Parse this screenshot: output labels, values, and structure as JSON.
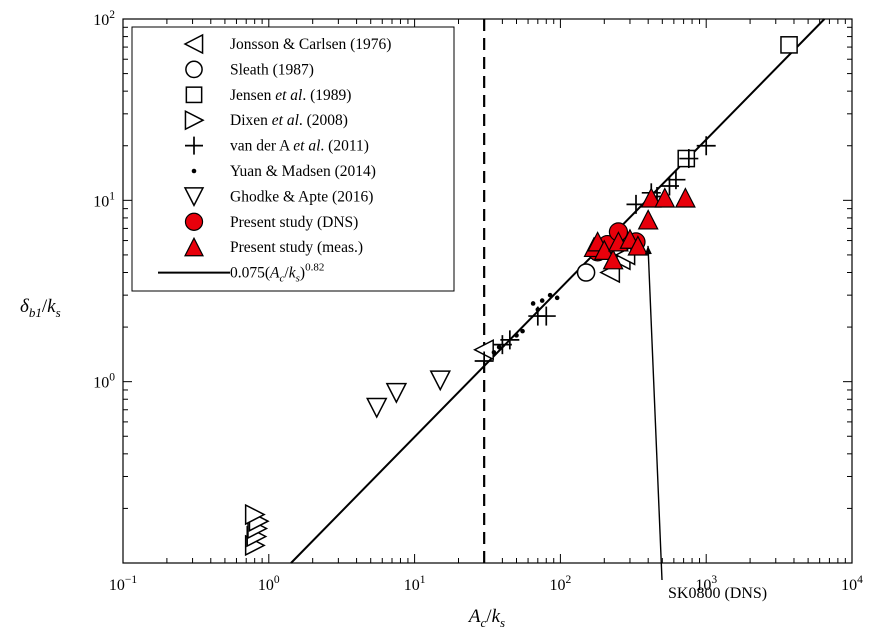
{
  "chart_data": {
    "type": "scatter",
    "title": "",
    "xlabel": {
      "main": "A",
      "sub1": "c",
      "slash": "/",
      "main2": "k",
      "sub2": "s"
    },
    "ylabel": {
      "main": "δ",
      "sub1": "b1",
      "slash": "/",
      "main2": "k",
      "sub2": "s"
    },
    "xscale": "log",
    "yscale": "log",
    "xlim": [
      0.1,
      10000
    ],
    "ylim": [
      0.1,
      100
    ],
    "x_ticks": [
      {
        "base": "10",
        "exp": "−1",
        "value": 0.1
      },
      {
        "base": "10",
        "exp": "0",
        "value": 1
      },
      {
        "base": "10",
        "exp": "1",
        "value": 10
      },
      {
        "base": "10",
        "exp": "2",
        "value": 100
      },
      {
        "base": "10",
        "exp": "3",
        "value": 1000
      },
      {
        "base": "10",
        "exp": "4",
        "value": 10000
      }
    ],
    "y_ticks": [
      {
        "base": "10",
        "exp": "0",
        "value": 1
      },
      {
        "base": "10",
        "exp": "1",
        "value": 10
      },
      {
        "base": "10",
        "exp": "2",
        "value": 100
      }
    ],
    "grid": false,
    "legend_position": "top-left",
    "vline_x": 30,
    "fit": {
      "coef": 0.075,
      "power": 0.82
    },
    "annotation": {
      "text": "SK0800 (DNS)",
      "target": [
        330,
        5.9
      ]
    },
    "series": [
      {
        "marker": "tri-left",
        "legend": {
          "pre": "Jonsson & Carlsen (1976)"
        },
        "points": [
          [
            30,
            1.5
          ],
          [
            220,
            4.0
          ],
          [
            260,
            4.7
          ],
          [
            280,
            5.0
          ]
        ]
      },
      {
        "marker": "circle",
        "legend": {
          "pre": "Sleath (1987)"
        },
        "points": [
          [
            150,
            4.0
          ]
        ]
      },
      {
        "marker": "square",
        "legend": {
          "pre": "Jensen ",
          "italic": "et al",
          "post": ". (1989)"
        },
        "points": [
          [
            730,
            17
          ],
          [
            3700,
            72
          ]
        ]
      },
      {
        "marker": "tri-right",
        "legend": {
          "pre": "Dixen ",
          "italic": "et al",
          "post": ". (2008)"
        },
        "points": [
          [
            0.8,
            0.125
          ],
          [
            0.82,
            0.14
          ],
          [
            0.83,
            0.155
          ],
          [
            0.85,
            0.17
          ],
          [
            0.8,
            0.185
          ]
        ]
      },
      {
        "marker": "plus",
        "legend": {
          "pre": "van der A ",
          "italic": "et al",
          "post": ". (2011)"
        },
        "points": [
          [
            30,
            1.3
          ],
          [
            40,
            1.6
          ],
          [
            45,
            1.7
          ],
          [
            70,
            2.3
          ],
          [
            80,
            2.3
          ],
          [
            330,
            9.5
          ],
          [
            560,
            12
          ],
          [
            620,
            13
          ],
          [
            760,
            17
          ],
          [
            1000,
            20
          ],
          [
            420,
            11
          ],
          [
            460,
            10.5
          ],
          [
            220,
            5.6
          ],
          [
            270,
            6.4
          ]
        ]
      },
      {
        "marker": "dot",
        "legend": {
          "pre": "Yuan & Madsen (2014)"
        },
        "points": [
          [
            35,
            1.45
          ],
          [
            38,
            1.55
          ],
          [
            50,
            1.8
          ],
          [
            55,
            1.9
          ],
          [
            65,
            2.7
          ],
          [
            70,
            2.5
          ],
          [
            75,
            2.8
          ],
          [
            85,
            3.0
          ],
          [
            95,
            2.9
          ]
        ]
      },
      {
        "marker": "tri-down",
        "legend": {
          "pre": "Ghodke & Apte (2016)"
        },
        "points": [
          [
            5.5,
            0.72
          ],
          [
            7.5,
            0.87
          ],
          [
            15,
            1.02
          ]
        ]
      },
      {
        "marker": "circle-filled",
        "legend": {
          "pre": "Present study (DNS)"
        },
        "points": [
          [
            180,
            5.2
          ],
          [
            210,
            5.7
          ],
          [
            250,
            6.7
          ],
          [
            330,
            5.9
          ]
        ]
      },
      {
        "marker": "tri-up-filled",
        "legend": {
          "pre": "Present study (meas.)"
        },
        "points": [
          [
            170,
            5.5
          ],
          [
            180,
            5.9
          ],
          [
            200,
            5.3
          ],
          [
            230,
            4.7
          ],
          [
            250,
            5.9
          ],
          [
            300,
            6.1
          ],
          [
            340,
            5.6
          ],
          [
            400,
            7.8
          ],
          [
            420,
            10.3
          ],
          [
            520,
            10.3
          ],
          [
            720,
            10.3
          ]
        ]
      },
      {
        "marker": "line",
        "legend": {
          "pre": "0.075(",
          "italic1": "A",
          "sub1": "c",
          "slash": "/",
          "italic2": "k",
          "sub2": "s",
          "close": ")",
          "sup": "0.82"
        },
        "points": []
      }
    ]
  }
}
